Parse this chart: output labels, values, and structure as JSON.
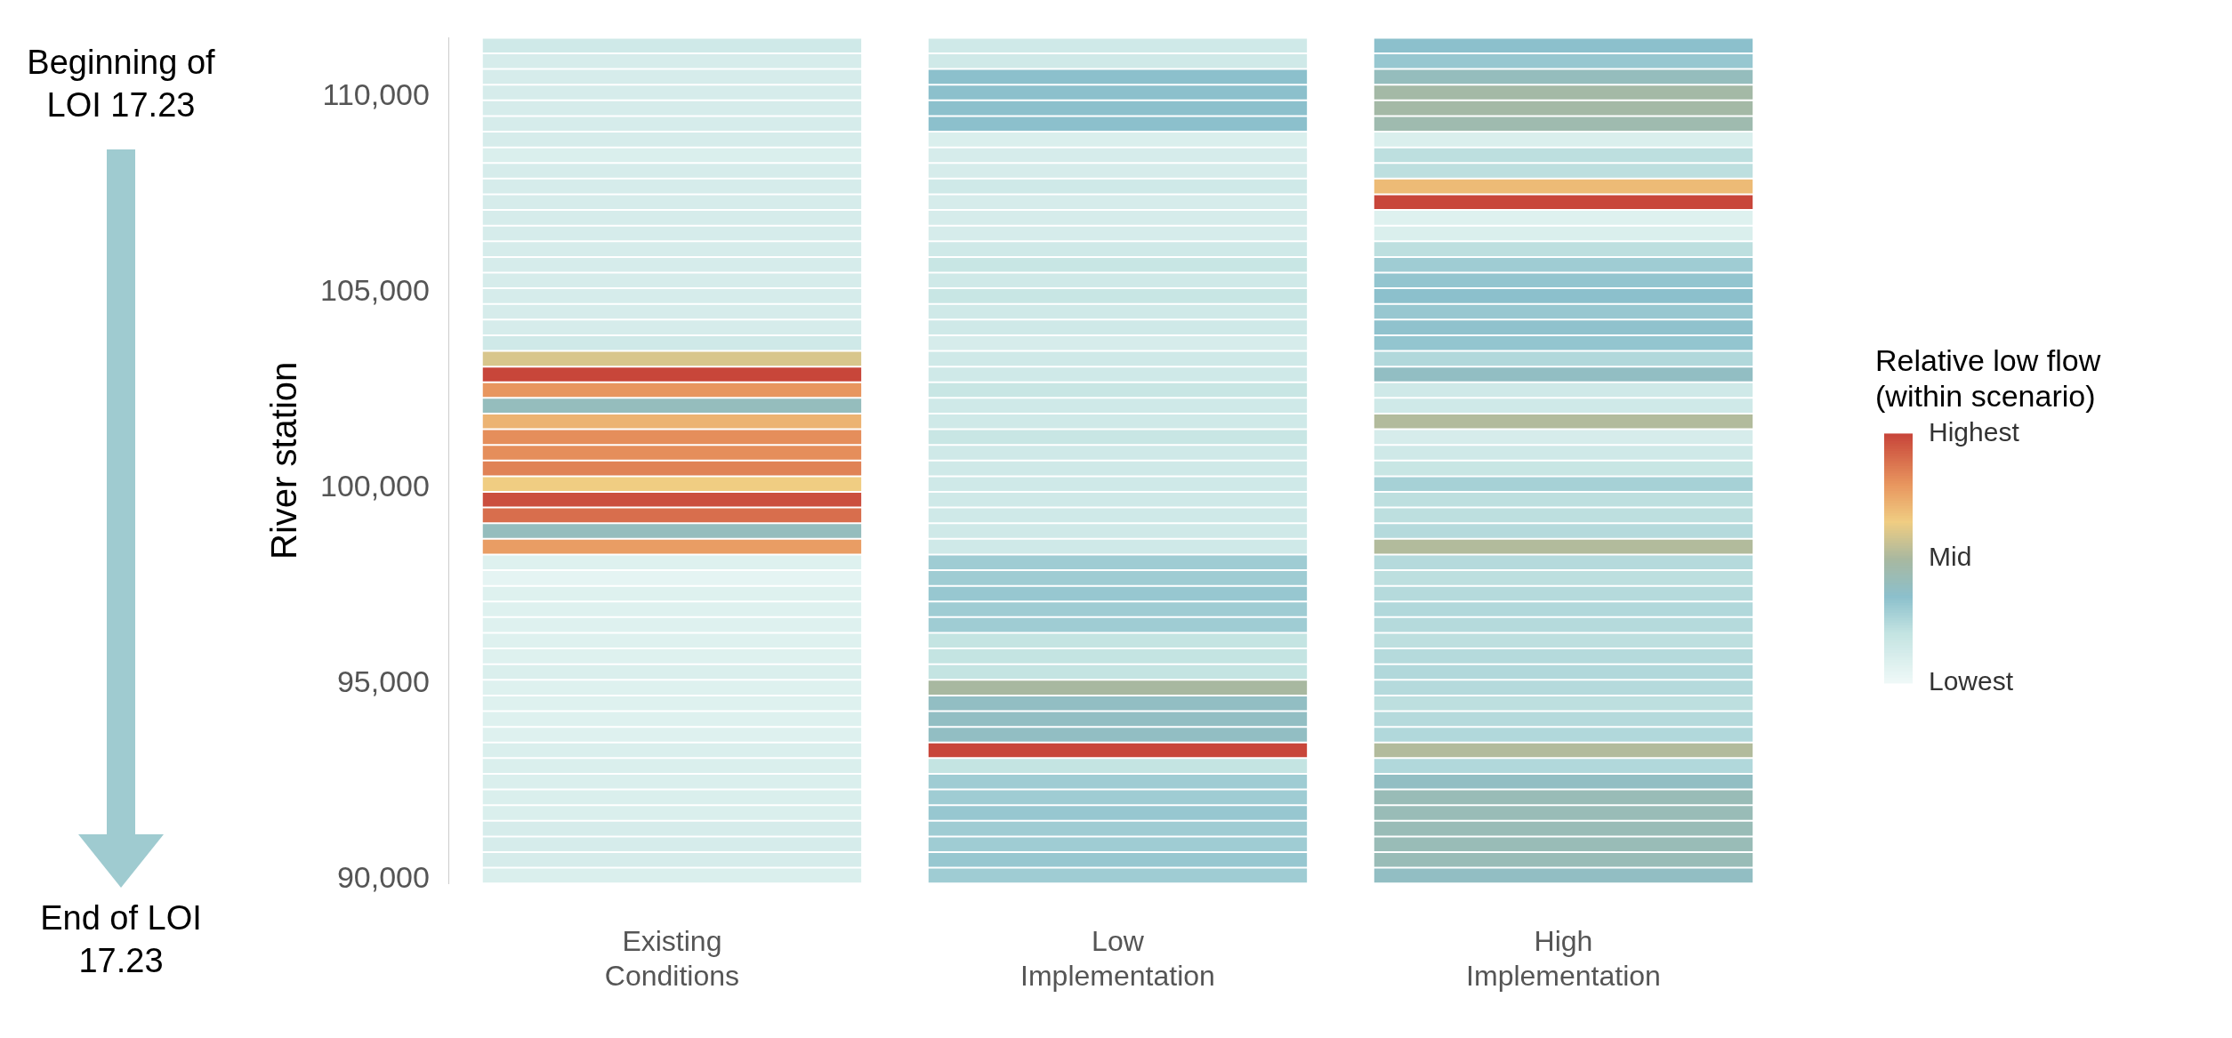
{
  "chart_data": {
    "type": "heatmap",
    "categories": [
      "Existing Conditions",
      "Low Implementation",
      "High Implementation"
    ],
    "ylim": [
      89900,
      111500
    ],
    "yticks": [
      {
        "value": 90000,
        "label": "90,000"
      },
      {
        "value": 95000,
        "label": "95,000"
      },
      {
        "value": 100000,
        "label": "100,000"
      },
      {
        "value": 105000,
        "label": "105,000"
      },
      {
        "value": 110000,
        "label": "110,000"
      }
    ],
    "ylabel": "River station",
    "clabel": "Relative low flow (within scenario)",
    "clim": [
      0,
      1
    ],
    "cticks": [
      {
        "value": 0,
        "label": "Lowest"
      },
      {
        "value": 0.5,
        "label": "Mid"
      },
      {
        "value": 1,
        "label": "Highest"
      }
    ],
    "annotations": [
      "Beginning of LOI 17.23",
      "End of LOI 17.23"
    ],
    "cells": [
      [
        0.15,
        0.15,
        0.35
      ],
      [
        0.12,
        0.15,
        0.32
      ],
      [
        0.12,
        0.35,
        0.4
      ],
      [
        0.12,
        0.35,
        0.48
      ],
      [
        0.12,
        0.35,
        0.48
      ],
      [
        0.12,
        0.35,
        0.45
      ],
      [
        0.12,
        0.1,
        0.1
      ],
      [
        0.1,
        0.12,
        0.22
      ],
      [
        0.12,
        0.12,
        0.22
      ],
      [
        0.12,
        0.15,
        0.7
      ],
      [
        0.12,
        0.12,
        1
      ],
      [
        0.12,
        0.12,
        0.08
      ],
      [
        0.12,
        0.12,
        0.1
      ],
      [
        0.12,
        0.15,
        0.22
      ],
      [
        0.12,
        0.18,
        0.3
      ],
      [
        0.12,
        0.15,
        0.33
      ],
      [
        0.12,
        0.18,
        0.35
      ],
      [
        0.12,
        0.15,
        0.32
      ],
      [
        0.12,
        0.15,
        0.34
      ],
      [
        0.15,
        0.12,
        0.33
      ],
      [
        0.6,
        0.15,
        0.25
      ],
      [
        1,
        0.15,
        0.38
      ],
      [
        0.8,
        0.18,
        0.15
      ],
      [
        0.4,
        0.15,
        0.15
      ],
      [
        0.72,
        0.15,
        0.52
      ],
      [
        0.82,
        0.18,
        0.12
      ],
      [
        0.82,
        0.15,
        0.15
      ],
      [
        0.85,
        0.15,
        0.18
      ],
      [
        0.65,
        0.15,
        0.28
      ],
      [
        0.98,
        0.15,
        0.22
      ],
      [
        0.9,
        0.15,
        0.22
      ],
      [
        0.4,
        0.15,
        0.24
      ],
      [
        0.78,
        0.15,
        0.52
      ],
      [
        0.08,
        0.3,
        0.24
      ],
      [
        0.05,
        0.3,
        0.22
      ],
      [
        0.08,
        0.32,
        0.24
      ],
      [
        0.08,
        0.3,
        0.25
      ],
      [
        0.08,
        0.3,
        0.24
      ],
      [
        0.08,
        0.2,
        0.22
      ],
      [
        0.08,
        0.2,
        0.24
      ],
      [
        0.1,
        0.2,
        0.25
      ],
      [
        0.08,
        0.5,
        0.24
      ],
      [
        0.08,
        0.38,
        0.22
      ],
      [
        0.08,
        0.38,
        0.24
      ],
      [
        0.08,
        0.38,
        0.25
      ],
      [
        0.1,
        1,
        0.52
      ],
      [
        0.1,
        0.2,
        0.25
      ],
      [
        0.1,
        0.3,
        0.38
      ],
      [
        0.1,
        0.3,
        0.42
      ],
      [
        0.1,
        0.32,
        0.42
      ],
      [
        0.12,
        0.3,
        0.42
      ],
      [
        0.12,
        0.3,
        0.42
      ],
      [
        0.12,
        0.32,
        0.42
      ],
      [
        0.1,
        0.3,
        0.38
      ]
    ]
  }
}
